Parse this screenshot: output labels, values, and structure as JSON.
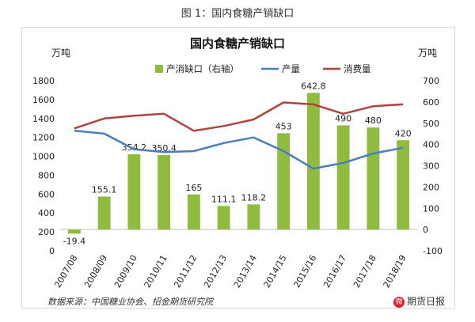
{
  "figure_caption": "图 1：国内食糖产销缺口",
  "source": "数据来源：中国糖业协会、招金期货研究院",
  "brand": {
    "icon": "weibo-logo-icon",
    "icon_text": "微",
    "text": "期货日报"
  },
  "colors": {
    "bar": "#8fbc3f",
    "production": "#4a7ebb",
    "consumption": "#b0433e"
  },
  "chart_data": {
    "type": "bar+line",
    "title": "国内食糖产销缺口",
    "left_axis_unit": "万吨",
    "right_axis_unit": "万吨",
    "categories": [
      "2007/08",
      "2008/09",
      "2009/10",
      "2010/11",
      "2011/12",
      "2012/13",
      "2013/14",
      "2014/15",
      "2015/16",
      "2016/17",
      "2017/18",
      "2018/19"
    ],
    "left_axis": {
      "min": 0,
      "max": 1800,
      "step": 200,
      "ticks": [
        "0",
        "200",
        "400",
        "600",
        "800",
        "1000",
        "1200",
        "1400",
        "1600",
        "1800"
      ]
    },
    "right_axis": {
      "min": -100,
      "max": 700,
      "step": 100,
      "ticks": [
        "-100",
        "0",
        "100",
        "200",
        "300",
        "400",
        "500",
        "600",
        "700"
      ]
    },
    "legend": [
      "产消缺口（右轴）",
      "产量",
      "消费量"
    ],
    "series": [
      {
        "name": "产消缺口（右轴）",
        "type": "bar",
        "axis": "right",
        "values": [
          -19.4,
          155.1,
          354.2,
          350.4,
          165,
          111.1,
          118.2,
          453,
          642.8,
          490,
          480,
          420
        ],
        "labels": [
          "-19.4",
          "155.1",
          "354.2",
          "350.4",
          "165",
          "111.1",
          "118.2",
          "453",
          "642.8",
          "490",
          "480",
          "420"
        ]
      },
      {
        "name": "产量",
        "type": "line",
        "axis": "left",
        "values": [
          1270,
          1240,
          1075,
          1045,
          1055,
          1140,
          1200,
          1055,
          870,
          930,
          1030,
          1090
        ]
      },
      {
        "name": "消费量",
        "type": "line",
        "axis": "left",
        "values": [
          1295,
          1400,
          1430,
          1450,
          1270,
          1320,
          1390,
          1570,
          1550,
          1450,
          1530,
          1550
        ]
      }
    ],
    "grid": false,
    "legend_position": "top"
  }
}
